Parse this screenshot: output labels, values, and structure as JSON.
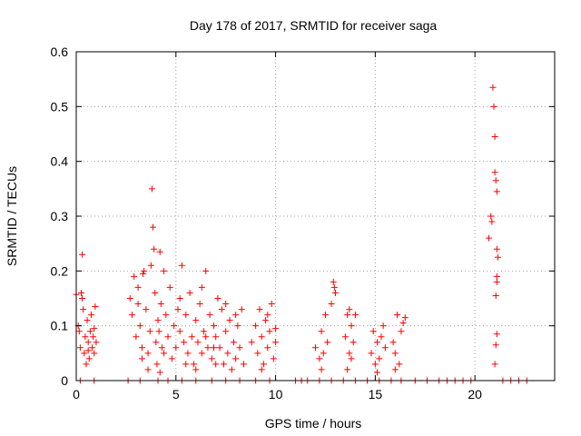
{
  "chart_data": {
    "type": "scatter",
    "title": "Day 178 of 2017, SRMTID for receiver saga",
    "xlabel": "GPS time / hours",
    "ylabel": "SRMTID / TECUs",
    "xlim": [
      0,
      24
    ],
    "ylim": [
      0,
      0.6
    ],
    "xticks": [
      0,
      5,
      10,
      15,
      20
    ],
    "yticks": [
      0,
      0.1,
      0.2,
      0.3,
      0.4,
      0.5,
      0.6
    ],
    "xtick_labels": [
      "0",
      "5",
      "10",
      "15",
      "20"
    ],
    "ytick_labels": [
      "0",
      "0.1",
      "0.2",
      "0.3",
      "0.4",
      "0.5",
      "0.6"
    ],
    "grid": true,
    "marker": "+",
    "color": "#ff0000",
    "series": [
      {
        "name": "SRMTID",
        "points": [
          [
            0.0,
            0.157
          ],
          [
            0.1,
            0.1
          ],
          [
            0.15,
            0.09
          ],
          [
            0.2,
            0.06
          ],
          [
            0.25,
            0.16
          ],
          [
            0.3,
            0.23
          ],
          [
            0.35,
            0.13
          ],
          [
            0.4,
            0.05
          ],
          [
            0.45,
            0.08
          ],
          [
            0.5,
            0.03
          ],
          [
            0.55,
            0.11
          ],
          [
            0.6,
            0.07
          ],
          [
            0.65,
            0.04
          ],
          [
            0.7,
            0.09
          ],
          [
            0.75,
            0.12
          ],
          [
            0.8,
            0.06
          ],
          [
            0.85,
            0.08
          ],
          [
            0.9,
            0.05
          ],
          [
            0.95,
            0.135
          ],
          [
            1.0,
            0.07
          ],
          [
            0.3,
            0.15
          ],
          [
            0.6,
            0.055
          ],
          [
            0.9,
            0.095
          ],
          [
            2.7,
            0.15
          ],
          [
            2.8,
            0.12
          ],
          [
            2.9,
            0.19
          ],
          [
            3.0,
            0.08
          ],
          [
            3.1,
            0.14
          ],
          [
            3.2,
            0.1
          ],
          [
            3.3,
            0.06
          ],
          [
            3.35,
            0.195
          ],
          [
            3.4,
            0.2
          ],
          [
            3.5,
            0.13
          ],
          [
            3.6,
            0.05
          ],
          [
            3.7,
            0.09
          ],
          [
            3.75,
            0.21
          ],
          [
            3.8,
            0.35
          ],
          [
            3.85,
            0.28
          ],
          [
            3.9,
            0.24
          ],
          [
            3.95,
            0.16
          ],
          [
            4.0,
            0.07
          ],
          [
            4.05,
            0.03
          ],
          [
            4.1,
            0.11
          ],
          [
            4.15,
            0.09
          ],
          [
            4.2,
            0.235
          ],
          [
            4.25,
            0.14
          ],
          [
            4.3,
            0.06
          ],
          [
            4.4,
            0.2
          ],
          [
            4.5,
            0.12
          ],
          [
            4.6,
            0.08
          ],
          [
            4.7,
            0.17
          ],
          [
            4.8,
            0.04
          ],
          [
            4.9,
            0.1
          ],
          [
            3.3,
            0.04
          ],
          [
            3.6,
            0.02
          ],
          [
            4.2,
            0.015
          ],
          [
            3.1,
            0.17
          ],
          [
            4.4,
            0.05
          ],
          [
            5.0,
            0.06
          ],
          [
            5.1,
            0.13
          ],
          [
            5.2,
            0.09
          ],
          [
            5.3,
            0.21
          ],
          [
            5.4,
            0.07
          ],
          [
            5.5,
            0.12
          ],
          [
            5.6,
            0.05
          ],
          [
            5.7,
            0.16
          ],
          [
            5.8,
            0.08
          ],
          [
            5.9,
            0.03
          ],
          [
            6.0,
            0.11
          ],
          [
            6.1,
            0.07
          ],
          [
            6.2,
            0.14
          ],
          [
            6.3,
            0.05
          ],
          [
            6.4,
            0.09
          ],
          [
            6.5,
            0.2
          ],
          [
            6.6,
            0.06
          ],
          [
            6.7,
            0.12
          ],
          [
            6.8,
            0.04
          ],
          [
            6.9,
            0.1
          ],
          [
            7.0,
            0.08
          ],
          [
            7.1,
            0.15
          ],
          [
            7.2,
            0.06
          ],
          [
            7.3,
            0.13
          ],
          [
            7.4,
            0.03
          ],
          [
            7.5,
            0.09
          ],
          [
            7.6,
            0.05
          ],
          [
            7.7,
            0.11
          ],
          [
            7.8,
            0.02
          ],
          [
            7.9,
            0.07
          ],
          [
            8.0,
            0.04
          ],
          [
            8.1,
            0.1
          ],
          [
            8.2,
            0.06
          ],
          [
            8.3,
            0.13
          ],
          [
            8.4,
            0.03
          ],
          [
            5.5,
            0.03
          ],
          [
            6.0,
            0.02
          ],
          [
            6.5,
            0.08
          ],
          [
            7.0,
            0.03
          ],
          [
            7.5,
            0.14
          ],
          [
            8.0,
            0.12
          ],
          [
            5.2,
            0.15
          ],
          [
            6.3,
            0.17
          ],
          [
            6.9,
            0.06
          ],
          [
            8.8,
            0.07
          ],
          [
            9.0,
            0.1
          ],
          [
            9.1,
            0.05
          ],
          [
            9.2,
            0.13
          ],
          [
            9.3,
            0.08
          ],
          [
            9.4,
            0.03
          ],
          [
            9.5,
            0.11
          ],
          [
            9.6,
            0.06
          ],
          [
            9.7,
            0.09
          ],
          [
            9.8,
            0.14
          ],
          [
            9.9,
            0.04
          ],
          [
            10.0,
            0.07
          ],
          [
            9.3,
            0.02
          ],
          [
            9.6,
            0.12
          ],
          [
            10.0,
            0.095
          ],
          [
            12.0,
            0.06
          ],
          [
            12.2,
            0.04
          ],
          [
            12.3,
            0.09
          ],
          [
            12.4,
            0.05
          ],
          [
            12.5,
            0.12
          ],
          [
            12.6,
            0.07
          ],
          [
            12.3,
            0.02
          ],
          [
            12.9,
            0.18
          ],
          [
            13.0,
            0.16
          ],
          [
            12.8,
            0.14
          ],
          [
            12.95,
            0.17
          ],
          [
            13.5,
            0.08
          ],
          [
            13.6,
            0.12
          ],
          [
            13.7,
            0.05
          ],
          [
            13.8,
            0.1
          ],
          [
            13.9,
            0.07
          ],
          [
            14.0,
            0.12
          ],
          [
            13.6,
            0.02
          ],
          [
            13.8,
            0.04
          ],
          [
            13.7,
            0.13
          ],
          [
            14.8,
            0.05
          ],
          [
            14.9,
            0.09
          ],
          [
            15.0,
            0.03
          ],
          [
            15.1,
            0.07
          ],
          [
            15.2,
            0.04
          ],
          [
            15.3,
            0.08
          ],
          [
            15.4,
            0.1
          ],
          [
            15.5,
            0.06
          ],
          [
            15.1,
            0.015
          ],
          [
            15.9,
            0.07
          ],
          [
            16.0,
            0.05
          ],
          [
            16.1,
            0.12
          ],
          [
            16.2,
            0.03
          ],
          [
            16.3,
            0.09
          ],
          [
            16.5,
            0.115
          ],
          [
            16.0,
            0.02
          ],
          [
            16.4,
            0.105
          ],
          [
            20.7,
            0.26
          ],
          [
            20.8,
            0.3
          ],
          [
            20.85,
            0.29
          ],
          [
            20.9,
            0.535
          ],
          [
            20.95,
            0.5
          ],
          [
            21.0,
            0.445
          ],
          [
            21.0,
            0.38
          ],
          [
            21.05,
            0.365
          ],
          [
            21.1,
            0.345
          ],
          [
            21.1,
            0.24
          ],
          [
            21.15,
            0.225
          ],
          [
            21.1,
            0.19
          ],
          [
            21.1,
            0.18
          ],
          [
            21.05,
            0.155
          ],
          [
            21.1,
            0.085
          ],
          [
            21.05,
            0.065
          ],
          [
            21.0,
            0.03
          ],
          [
            0.2,
            0.0
          ],
          [
            0.9,
            0.0
          ],
          [
            2.6,
            0.0
          ],
          [
            3.2,
            0.0
          ],
          [
            4.1,
            0.0
          ],
          [
            4.6,
            0.0
          ],
          [
            5.3,
            0.0
          ],
          [
            6.0,
            0.0
          ],
          [
            6.8,
            0.0
          ],
          [
            7.5,
            0.0
          ],
          [
            8.2,
            0.0
          ],
          [
            9.0,
            0.0
          ],
          [
            9.7,
            0.0
          ],
          [
            11.0,
            0.0
          ],
          [
            11.3,
            0.0
          ],
          [
            11.6,
            0.0
          ],
          [
            12.2,
            0.0
          ],
          [
            12.8,
            0.0
          ],
          [
            13.4,
            0.0
          ],
          [
            14.0,
            0.0
          ],
          [
            14.6,
            0.0
          ],
          [
            15.2,
            0.0
          ],
          [
            15.8,
            0.0
          ],
          [
            16.3,
            0.0
          ],
          [
            17.0,
            0.0
          ],
          [
            17.6,
            0.0
          ],
          [
            18.2,
            0.0
          ],
          [
            18.6,
            0.0
          ],
          [
            19.0,
            0.0
          ],
          [
            19.4,
            0.0
          ],
          [
            19.8,
            0.0
          ],
          [
            21.4,
            0.0
          ],
          [
            21.8,
            0.0
          ],
          [
            22.2,
            0.0
          ],
          [
            22.6,
            0.0
          ]
        ]
      }
    ]
  }
}
